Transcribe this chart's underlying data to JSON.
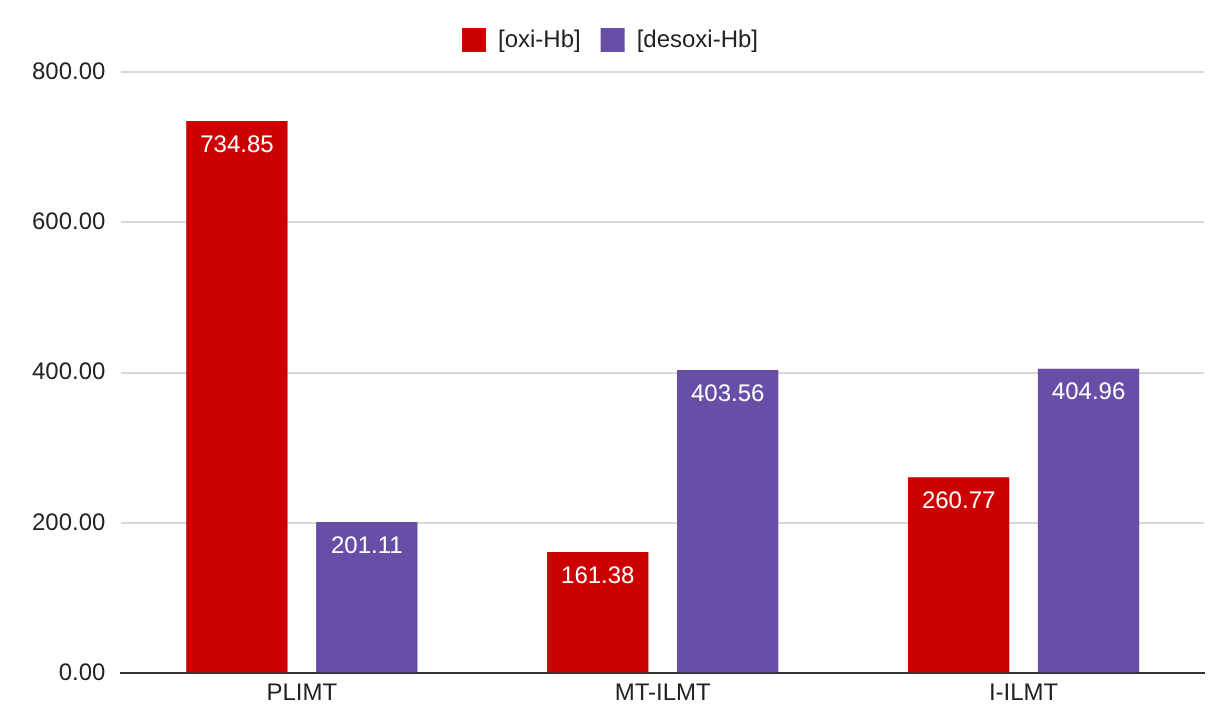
{
  "chart_data": {
    "type": "bar",
    "categories": [
      "PLIMT",
      "MT-ILMT",
      "I-ILMT"
    ],
    "series": [
      {
        "name": "[oxi-Hb]",
        "color": "#cc0000",
        "values": [
          734.85,
          161.38,
          260.77
        ]
      },
      {
        "name": "[desoxi-Hb]",
        "color": "#674ea7",
        "values": [
          201.11,
          403.56,
          404.96
        ]
      }
    ],
    "ylim": [
      0,
      800
    ],
    "yticks": [
      {
        "value": 0,
        "label": "0.00"
      },
      {
        "value": 200,
        "label": "200.00"
      },
      {
        "value": 400,
        "label": "400.00"
      },
      {
        "value": 600,
        "label": "600.00"
      },
      {
        "value": 800,
        "label": "800.00"
      }
    ],
    "grid": "y",
    "legend": "top",
    "data_labels": true
  }
}
